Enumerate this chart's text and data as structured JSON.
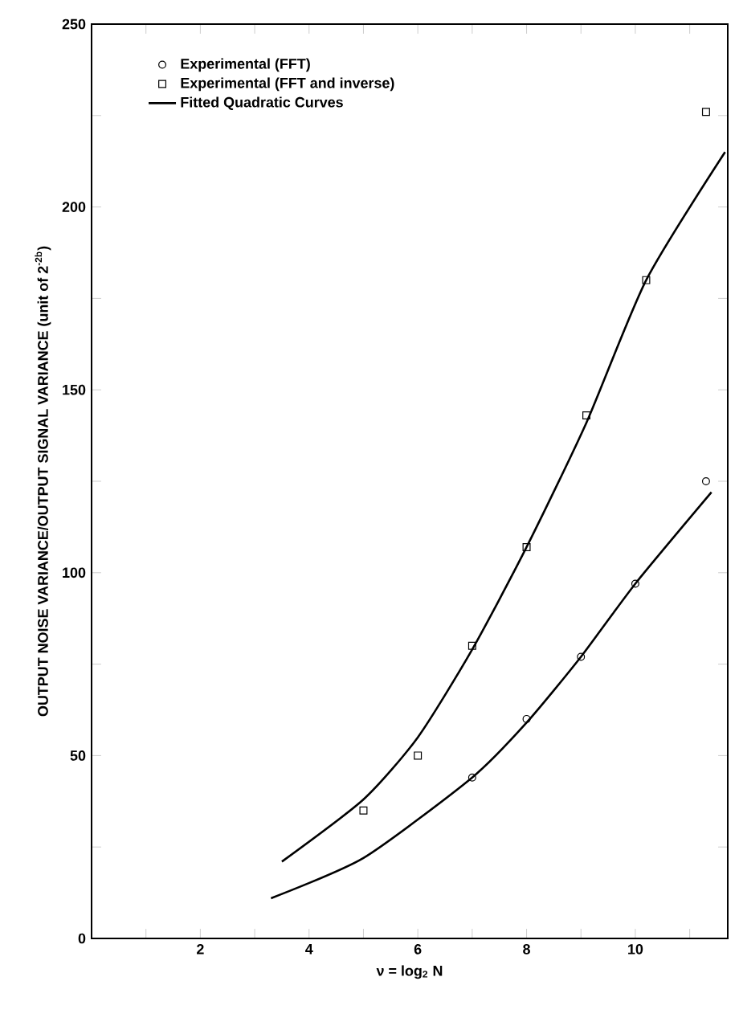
{
  "chart_data": {
    "type": "scatter",
    "xlabel": "ν = log$_{2}$ N",
    "ylabel": "OUTPUT NOISE VARIANCE/OUTPUT SIGNAL VARIANCE (unit of 2$^{-2b}$)",
    "xlim": [
      0,
      11.7
    ],
    "ylim": [
      0,
      250
    ],
    "xticks": [
      {
        "value": 1,
        "label": null
      },
      2,
      {
        "value": 3,
        "label": null
      },
      4,
      {
        "value": 5,
        "label": null
      },
      6,
      {
        "value": 7,
        "label": null
      },
      8,
      {
        "value": 9,
        "label": null
      },
      10,
      {
        "value": 11,
        "label": null
      }
    ],
    "yticks": [
      0,
      {
        "value": 25,
        "label": null
      },
      50,
      {
        "value": 75,
        "label": null
      },
      100,
      {
        "value": 125,
        "label": null
      },
      150,
      {
        "value": 175,
        "label": null
      },
      200,
      {
        "value": 225,
        "label": null
      },
      250
    ],
    "legend": "top left",
    "series": [
      {
        "name": "Experimental (FFT)",
        "marker": "circle",
        "color": "#000000",
        "x": [
          7,
          8,
          9,
          10,
          11.3
        ],
        "values": [
          44,
          60,
          77,
          97,
          125
        ]
      },
      {
        "name": "Experimental (FFT and inverse)",
        "marker": "square",
        "color": "#000000",
        "x": [
          5,
          6,
          7,
          8,
          9.1,
          10.2,
          11.3
        ],
        "values": [
          35,
          50,
          80,
          107,
          143,
          180,
          226
        ]
      },
      {
        "name": "Fitted Quadratic Curves",
        "type": "line",
        "marker": "none",
        "color": "#000000",
        "x": [
          3.5,
          5,
          6,
          7,
          8,
          9.1,
          10.2,
          11.65
        ],
        "values": [
          21,
          38,
          55,
          79,
          107,
          141,
          180,
          215
        ]
      },
      {
        "type": "line",
        "marker": "none",
        "color": "#000000",
        "x": [
          3.3,
          5,
          7,
          8,
          9,
          10,
          11.4
        ],
        "values": [
          11,
          22,
          44,
          59,
          77,
          97,
          122
        ]
      }
    ]
  }
}
